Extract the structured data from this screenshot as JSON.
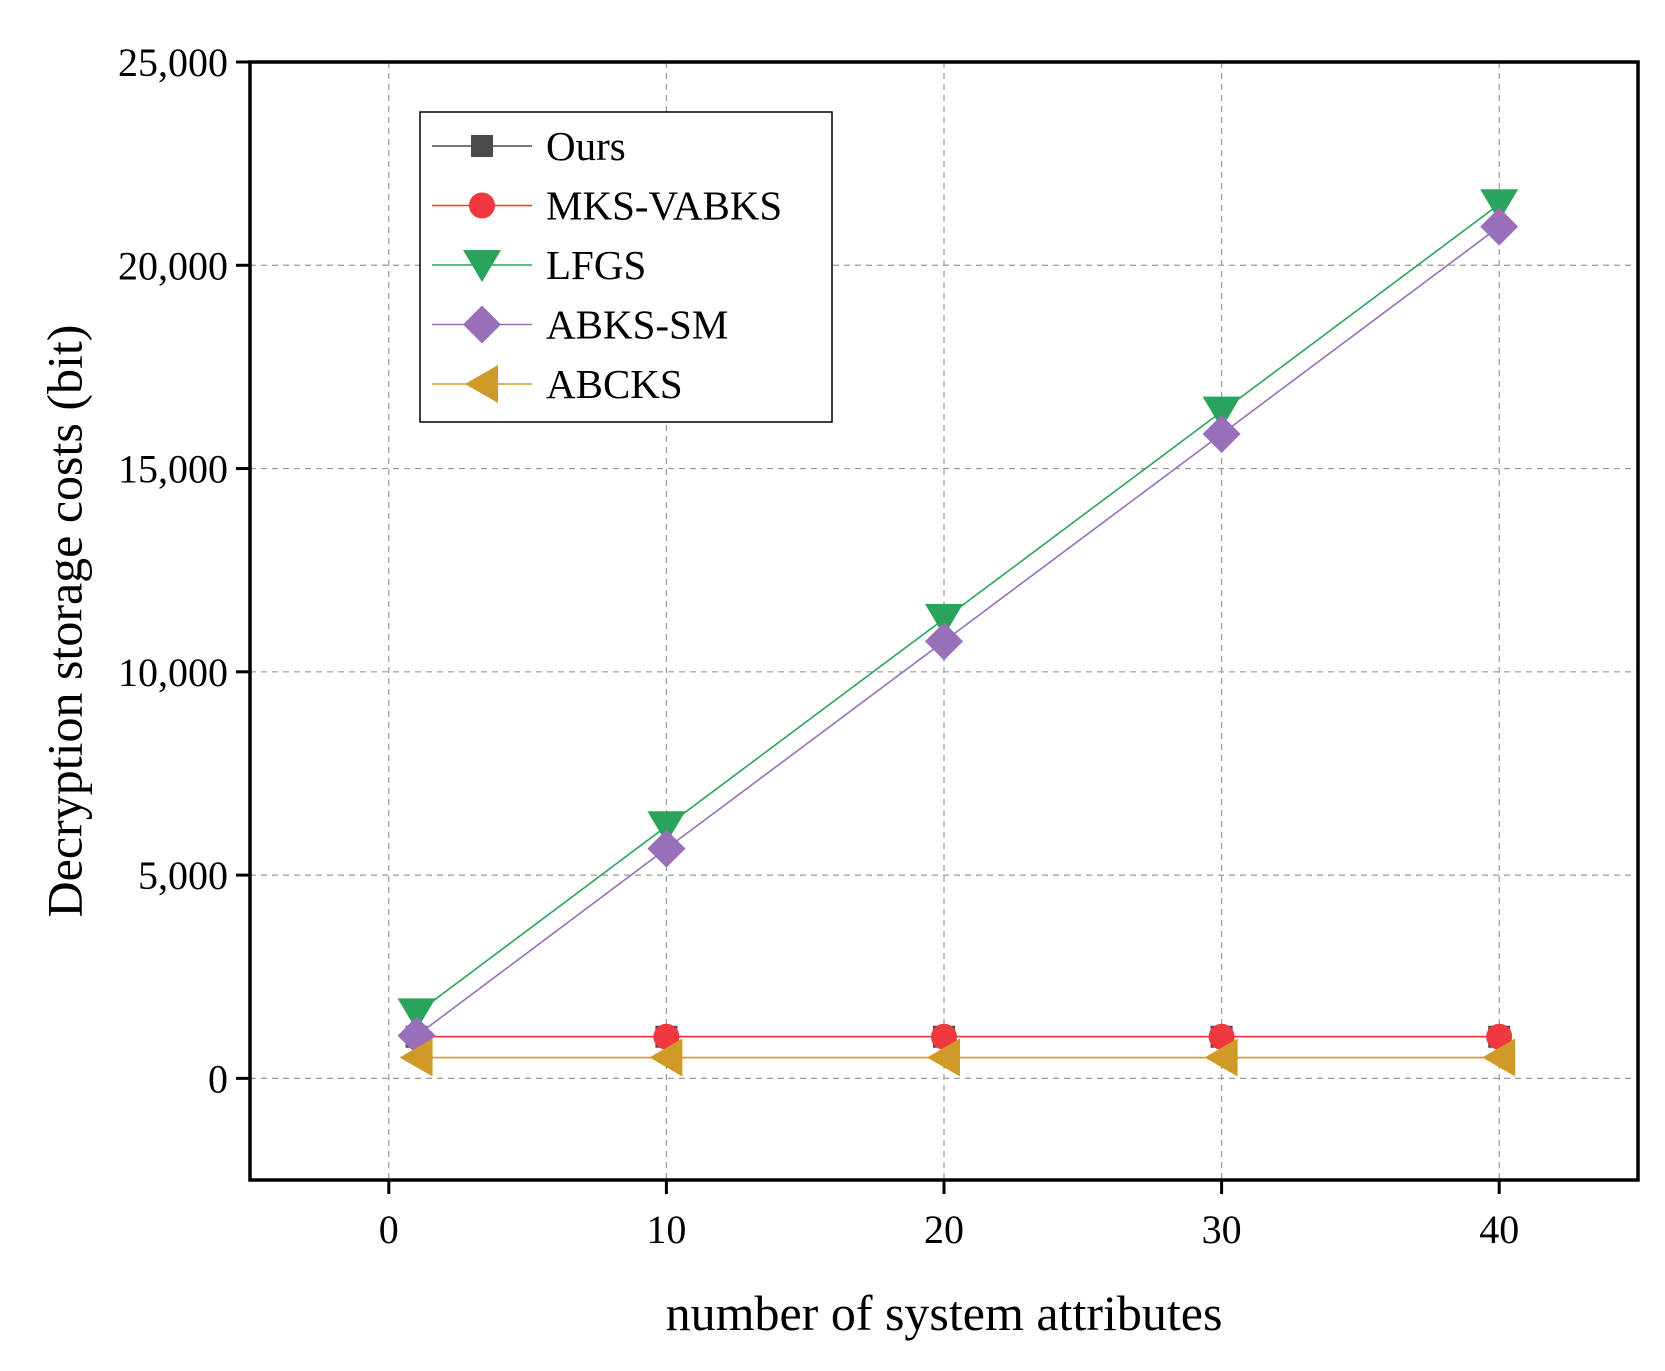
{
  "chart_data": {
    "type": "line",
    "title": "",
    "xlabel": "number of system attributes",
    "ylabel": "Decryption storage costs (bit)",
    "xlim": [
      -5,
      45
    ],
    "ylim": [
      -2500,
      25000
    ],
    "x_ticks": [
      0,
      10,
      20,
      30,
      40
    ],
    "x_tick_labels": [
      "0",
      "10",
      "20",
      "30",
      "40"
    ],
    "y_ticks": [
      0,
      5000,
      10000,
      15000,
      20000,
      25000
    ],
    "y_tick_labels": [
      "0",
      "5,000",
      "10,000",
      "15,000",
      "20,000",
      "25,000"
    ],
    "grid": true,
    "legend_position": "top-left",
    "x": [
      1,
      10,
      20,
      30,
      40
    ],
    "series": [
      {
        "name": "Ours",
        "marker": "square",
        "color": "#4a4a4a",
        "values": [
          1024,
          1024,
          1024,
          1024,
          1024
        ]
      },
      {
        "name": "MKS-VABKS",
        "marker": "circle",
        "color": "#f0393f",
        "values": [
          1024,
          1024,
          1024,
          1024,
          1024
        ]
      },
      {
        "name": " LFGS",
        "marker": "triangle-down",
        "color": "#2aa45c",
        "values": [
          1600,
          6200,
          11300,
          16400,
          21500
        ]
      },
      {
        "name": " ABKS-SM",
        "marker": "diamond",
        "color": "#9a6fba",
        "values": [
          1050,
          5650,
          10750,
          15850,
          20950
        ]
      },
      {
        "name": "ABCKS",
        "marker": "triangle-left",
        "color": "#d09a28",
        "values": [
          512,
          512,
          512,
          512,
          512
        ]
      }
    ]
  }
}
